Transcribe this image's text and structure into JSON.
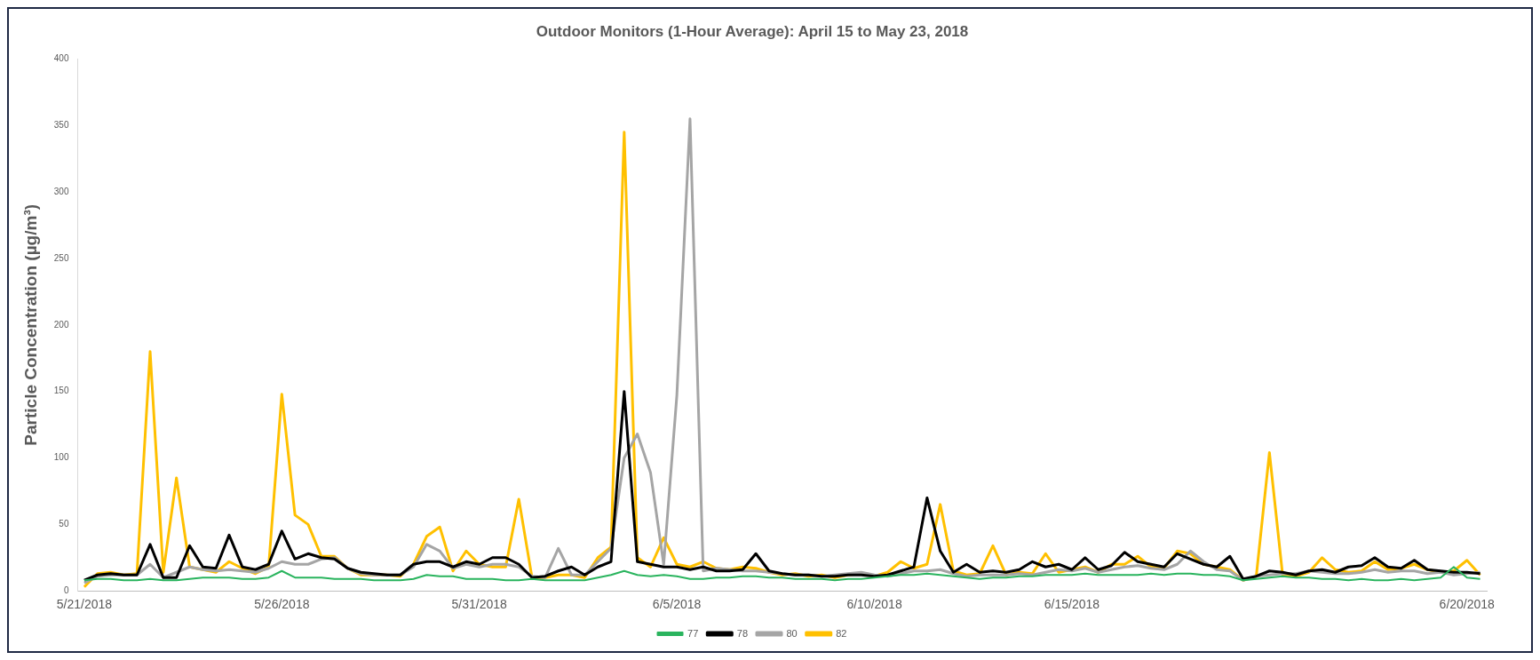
{
  "chart_data": {
    "type": "line",
    "title": "Outdoor Monitors (1-Hour Average): April 15 to May 23, 2018",
    "ylabel": "Particle Concentration (µg/m³)",
    "categories": [
      "5/21/2018",
      null,
      null,
      null,
      null,
      null,
      null,
      null,
      null,
      null,
      null,
      null,
      null,
      null,
      null,
      "5/26/2018",
      null,
      null,
      null,
      null,
      null,
      null,
      null,
      null,
      null,
      null,
      null,
      null,
      null,
      null,
      "5/31/2018",
      null,
      null,
      null,
      null,
      null,
      null,
      null,
      null,
      null,
      null,
      null,
      null,
      null,
      null,
      "6/5/2018",
      null,
      null,
      null,
      null,
      null,
      null,
      null,
      null,
      null,
      null,
      null,
      null,
      null,
      null,
      "6/10/2018",
      null,
      null,
      null,
      null,
      null,
      null,
      null,
      null,
      null,
      null,
      null,
      null,
      null,
      null,
      "6/15/2018",
      null,
      null,
      null,
      null,
      null,
      null,
      null,
      null,
      null,
      null,
      null,
      null,
      null,
      null,
      null,
      null,
      null,
      null,
      null,
      null,
      null,
      null,
      null,
      null,
      null,
      null,
      null,
      null,
      null,
      "6/20/2018",
      null
    ],
    "series": [
      {
        "name": "77",
        "color": "#2ab45e",
        "values": [
          8,
          9,
          9,
          8,
          8,
          9,
          8,
          8,
          9,
          10,
          10,
          10,
          9,
          9,
          10,
          15,
          10,
          10,
          10,
          9,
          9,
          9,
          8,
          8,
          8,
          9,
          12,
          11,
          11,
          9,
          9,
          9,
          8,
          8,
          9,
          8,
          8,
          8,
          8,
          10,
          12,
          15,
          12,
          11,
          12,
          11,
          9,
          9,
          10,
          10,
          11,
          11,
          10,
          10,
          9,
          9,
          9,
          8,
          9,
          9,
          10,
          11,
          12,
          12,
          13,
          12,
          11,
          10,
          9,
          10,
          10,
          11,
          11,
          12,
          12,
          12,
          13,
          12,
          12,
          12,
          12,
          13,
          12,
          13,
          13,
          12,
          12,
          11,
          8,
          9,
          10,
          11,
          10,
          10,
          9,
          9,
          8,
          9,
          8,
          8,
          9,
          8,
          9,
          10,
          18,
          10,
          9
        ]
      },
      {
        "name": "78",
        "color": "#000000",
        "values": [
          8,
          12,
          13,
          12,
          12,
          35,
          10,
          10,
          34,
          18,
          17,
          42,
          18,
          16,
          20,
          45,
          24,
          28,
          25,
          24,
          17,
          14,
          13,
          12,
          12,
          20,
          22,
          22,
          18,
          22,
          20,
          25,
          25,
          20,
          10,
          11,
          15,
          18,
          12,
          18,
          22,
          150,
          22,
          20,
          18,
          18,
          16,
          18,
          15,
          15,
          16,
          28,
          15,
          13,
          12,
          12,
          11,
          11,
          12,
          12,
          11,
          12,
          15,
          18,
          70,
          30,
          14,
          20,
          14,
          15,
          14,
          16,
          22,
          18,
          20,
          16,
          25,
          16,
          19,
          29,
          22,
          20,
          18,
          28,
          24,
          20,
          18,
          26,
          9,
          11,
          15,
          14,
          12,
          15,
          16,
          14,
          18,
          19,
          25,
          18,
          17,
          23,
          16,
          15,
          14,
          14,
          13
        ]
      },
      {
        "name": "80",
        "color": "#a5a5a5",
        "values": [
          6,
          11,
          12,
          12,
          12,
          20,
          10,
          14,
          18,
          16,
          15,
          16,
          15,
          14,
          17,
          22,
          20,
          20,
          24,
          25,
          17,
          13,
          12,
          12,
          12,
          18,
          35,
          30,
          17,
          20,
          18,
          20,
          20,
          18,
          11,
          10,
          32,
          12,
          12,
          22,
          32,
          100,
          118,
          89,
          20,
          147,
          355,
          15,
          17,
          16,
          15,
          15,
          14,
          13,
          12,
          12,
          11,
          12,
          13,
          14,
          12,
          11,
          13,
          15,
          15,
          16,
          13,
          11,
          12,
          12,
          12,
          13,
          12,
          14,
          16,
          15,
          17,
          14,
          16,
          18,
          19,
          17,
          16,
          20,
          30,
          22,
          16,
          15,
          8,
          11,
          12,
          13,
          13,
          15,
          14,
          13,
          13,
          14,
          16,
          14,
          15,
          15,
          13,
          14,
          12,
          13,
          14
        ]
      },
      {
        "name": "82",
        "color": "#ffc000",
        "values": [
          3,
          13,
          14,
          12,
          13,
          180,
          14,
          85,
          18,
          16,
          14,
          22,
          17,
          13,
          18,
          148,
          57,
          50,
          26,
          26,
          17,
          12,
          12,
          12,
          11,
          20,
          41,
          48,
          15,
          30,
          20,
          18,
          18,
          69,
          10,
          10,
          12,
          12,
          10,
          25,
          33,
          345,
          25,
          18,
          40,
          20,
          18,
          22,
          17,
          16,
          18,
          17,
          14,
          12,
          13,
          11,
          12,
          10,
          12,
          13,
          11,
          14,
          22,
          17,
          20,
          65,
          15,
          12,
          13,
          34,
          12,
          14,
          13,
          28,
          14,
          16,
          18,
          14,
          20,
          20,
          26,
          18,
          17,
          30,
          28,
          20,
          18,
          16,
          8,
          11,
          104,
          12,
          11,
          14,
          25,
          16,
          14,
          15,
          22,
          16,
          17,
          20,
          16,
          14,
          15,
          23,
          12
        ]
      }
    ],
    "ylim": [
      0,
      400
    ],
    "yticks": [
      0,
      50,
      100,
      150,
      200,
      250,
      300,
      350,
      400
    ],
    "grid": false,
    "legend": "bottom",
    "marker": "none"
  }
}
